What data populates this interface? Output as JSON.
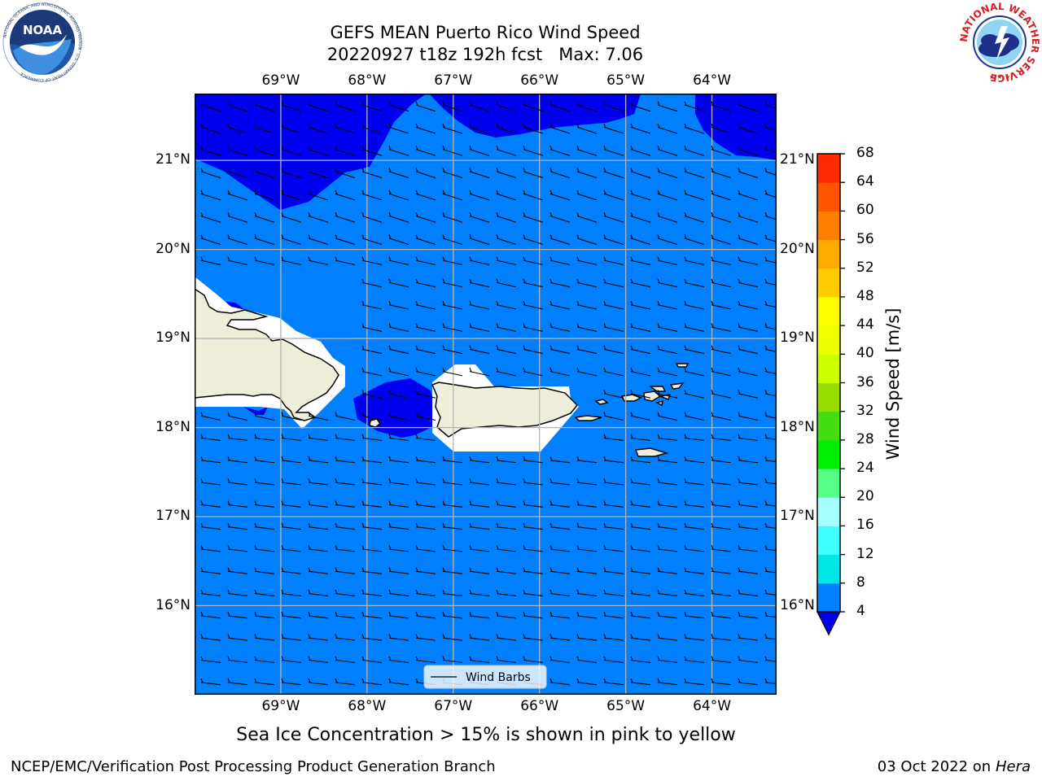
{
  "title": {
    "line1": "GEFS MEAN Puerto Rico Wind Speed",
    "line2": "20220927 t18z 192h fcst   Max: 7.06"
  },
  "logos": {
    "noaa": {
      "name": "NOAA",
      "ring_text": "NATIONAL OCEANIC AND ATMOSPHERIC ADMINISTRATION · U.S. DEPARTMENT OF COMMERCE",
      "color": "#1b4fa0"
    },
    "nws": {
      "ring_text": "NATIONAL WEATHER SERVICE",
      "color": "#d31f26"
    }
  },
  "map": {
    "lon_ticks": [
      "69°W",
      "68°W",
      "67°W",
      "66°W",
      "65°W",
      "64°W"
    ],
    "lat_ticks": [
      "21°N",
      "20°N",
      "19°N",
      "18°N",
      "17°N",
      "16°N"
    ],
    "lon_values": [
      -69,
      -68,
      -67,
      -66,
      -65,
      -64
    ],
    "lat_values": [
      21,
      20,
      19,
      18,
      17,
      16
    ],
    "extent": {
      "lon_min": -70,
      "lon_max": -63.25,
      "lat_min": 15,
      "lat_max": 21.75
    },
    "colors": {
      "wind_4_8": "#0080ff",
      "wind_below_4": "#0000f0",
      "land": "#efeedb",
      "gridline": "#b4b4b4"
    },
    "legend_label": "Wind Barbs"
  },
  "colorbar": {
    "label": "Wind Speed [m/s]",
    "levels": [
      4,
      8,
      12,
      16,
      20,
      24,
      28,
      32,
      36,
      40,
      44,
      48,
      52,
      56,
      60,
      64,
      68
    ],
    "colors": [
      "#0080ff",
      "#00e6e6",
      "#40ffff",
      "#a6ffff",
      "#55ff88",
      "#00ee00",
      "#44dd11",
      "#99dd00",
      "#ccff00",
      "#eeff00",
      "#ffff00",
      "#ffcc00",
      "#ffaa00",
      "#ff8000",
      "#ff5500",
      "#ff2a00"
    ],
    "under_color": "#0000f0"
  },
  "caption": "Sea Ice Concentration > 15% is shown in pink to yellow",
  "footer": {
    "left": "NCEP/EMC/Verification Post Processing Product Generation Branch",
    "date": "03 Oct 2022 on ",
    "machine": "Hera"
  }
}
